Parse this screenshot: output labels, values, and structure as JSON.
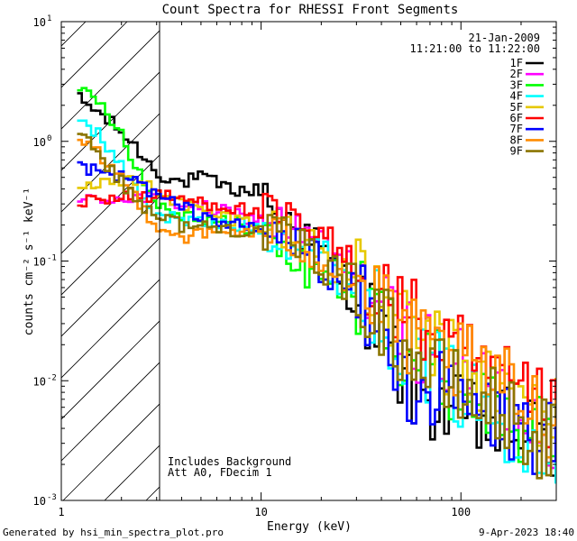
{
  "chart_data": {
    "type": "line",
    "title": "Count Spectra for RHESSI Front Segments",
    "xlabel": "Energy (keV)",
    "ylabel": "counts cm⁻² s⁻¹ keV⁻¹",
    "x_scale": "log",
    "y_scale": "log",
    "xlim": [
      1,
      300
    ],
    "ylim": [
      0.001,
      10
    ],
    "x_ticks": [
      {
        "value": 1,
        "label": "1"
      },
      {
        "value": 10,
        "label": "10"
      },
      {
        "value": 100,
        "label": "100"
      }
    ],
    "y_ticks": [
      {
        "value": 0.001,
        "base": "10",
        "exp": "-3"
      },
      {
        "value": 0.01,
        "base": "10",
        "exp": "-2"
      },
      {
        "value": 0.1,
        "base": "10",
        "exp": "-1"
      },
      {
        "value": 1,
        "base": "10",
        "exp": "0"
      },
      {
        "value": 10,
        "base": "10",
        "exp": "1"
      }
    ],
    "date": "21-Jan-2009",
    "time_range": "11:21:00 to 11:22:00",
    "hatched_region_kev": [
      1,
      3
    ],
    "annotations": [
      "Includes Background",
      "Att A0, FDecim 1"
    ],
    "footer_left": "Generated by hsi_min_spectra_plot.pro",
    "footer_right": "9-Apr-2023 18:40",
    "series": [
      {
        "name": "1F",
        "color": "#000000",
        "anchors": [
          [
            1.2,
            2.3
          ],
          [
            1.5,
            1.8
          ],
          [
            2.0,
            1.2
          ],
          [
            2.5,
            0.8
          ],
          [
            3.0,
            0.55
          ],
          [
            4.0,
            0.45
          ],
          [
            5.0,
            0.5
          ],
          [
            7.0,
            0.4
          ],
          [
            9.0,
            0.38
          ],
          [
            10.0,
            0.4
          ],
          [
            12.0,
            0.27
          ],
          [
            15.0,
            0.2
          ],
          [
            20.0,
            0.12
          ],
          [
            30.0,
            0.05
          ],
          [
            40.0,
            0.025
          ],
          [
            50.0,
            0.012
          ],
          [
            60.0,
            0.008
          ],
          [
            80.0,
            0.006
          ],
          [
            100.0,
            0.005
          ],
          [
            150.0,
            0.004
          ],
          [
            200.0,
            0.004
          ],
          [
            280.0,
            0.003
          ]
        ]
      },
      {
        "name": "2F",
        "color": "#ff00ff",
        "anchors": [
          [
            1.2,
            0.3
          ],
          [
            1.5,
            0.33
          ],
          [
            2.0,
            0.34
          ],
          [
            2.5,
            0.34
          ],
          [
            3.0,
            0.33
          ],
          [
            4.0,
            0.3
          ],
          [
            5.0,
            0.28
          ],
          [
            7.0,
            0.25
          ],
          [
            10.0,
            0.22
          ],
          [
            15.0,
            0.18
          ],
          [
            20.0,
            0.13
          ],
          [
            30.0,
            0.075
          ],
          [
            40.0,
            0.04
          ],
          [
            50.0,
            0.028
          ],
          [
            70.0,
            0.018
          ],
          [
            100.0,
            0.012
          ],
          [
            150.0,
            0.008
          ],
          [
            200.0,
            0.006
          ],
          [
            280.0,
            0.004
          ]
        ]
      },
      {
        "name": "3F",
        "color": "#00ff00",
        "anchors": [
          [
            1.2,
            2.5
          ],
          [
            1.4,
            2.4
          ],
          [
            1.6,
            2.0
          ],
          [
            2.0,
            1.2
          ],
          [
            2.3,
            0.7
          ],
          [
            2.6,
            0.45
          ],
          [
            3.0,
            0.3
          ],
          [
            4.0,
            0.25
          ],
          [
            6.0,
            0.22
          ],
          [
            8.0,
            0.2
          ],
          [
            10.0,
            0.18
          ],
          [
            13.0,
            0.12
          ],
          [
            17.0,
            0.08
          ],
          [
            20.0,
            0.09
          ],
          [
            30.0,
            0.05
          ],
          [
            40.0,
            0.035
          ],
          [
            50.0,
            0.02
          ],
          [
            70.0,
            0.013
          ],
          [
            100.0,
            0.009
          ],
          [
            150.0,
            0.006
          ],
          [
            200.0,
            0.004
          ],
          [
            280.0,
            0.003
          ]
        ]
      },
      {
        "name": "4F",
        "color": "#00ffff",
        "anchors": [
          [
            1.2,
            1.7
          ],
          [
            1.5,
            1.2
          ],
          [
            2.0,
            0.6
          ],
          [
            2.5,
            0.35
          ],
          [
            3.0,
            0.25
          ],
          [
            4.0,
            0.22
          ],
          [
            6.0,
            0.2
          ],
          [
            8.0,
            0.2
          ],
          [
            10.0,
            0.19
          ],
          [
            15.0,
            0.15
          ],
          [
            20.0,
            0.11
          ],
          [
            30.0,
            0.06
          ],
          [
            40.0,
            0.035
          ],
          [
            50.0,
            0.022
          ],
          [
            70.0,
            0.013
          ],
          [
            100.0,
            0.008
          ],
          [
            150.0,
            0.005
          ],
          [
            200.0,
            0.004
          ],
          [
            280.0,
            0.003
          ]
        ]
      },
      {
        "name": "5F",
        "color": "#e6c800",
        "anchors": [
          [
            1.2,
            0.45
          ],
          [
            1.5,
            0.45
          ],
          [
            2.0,
            0.46
          ],
          [
            2.5,
            0.45
          ],
          [
            3.0,
            0.4
          ],
          [
            4.0,
            0.3
          ],
          [
            6.0,
            0.24
          ],
          [
            8.0,
            0.22
          ],
          [
            10.0,
            0.2
          ],
          [
            15.0,
            0.17
          ],
          [
            20.0,
            0.12
          ],
          [
            30.0,
            0.07
          ],
          [
            40.0,
            0.045
          ],
          [
            50.0,
            0.03
          ],
          [
            70.0,
            0.02
          ],
          [
            100.0,
            0.013
          ],
          [
            150.0,
            0.009
          ],
          [
            200.0,
            0.007
          ],
          [
            280.0,
            0.005
          ]
        ]
      },
      {
        "name": "6F",
        "color": "#ff0000",
        "anchors": [
          [
            1.2,
            0.3
          ],
          [
            1.5,
            0.33
          ],
          [
            2.0,
            0.35
          ],
          [
            2.5,
            0.35
          ],
          [
            3.0,
            0.35
          ],
          [
            4.0,
            0.33
          ],
          [
            6.0,
            0.3
          ],
          [
            8.0,
            0.27
          ],
          [
            10.0,
            0.25
          ],
          [
            12.0,
            0.23
          ],
          [
            15.0,
            0.2
          ],
          [
            20.0,
            0.15
          ],
          [
            30.0,
            0.09
          ],
          [
            40.0,
            0.055
          ],
          [
            50.0,
            0.04
          ],
          [
            70.0,
            0.025
          ],
          [
            100.0,
            0.016
          ],
          [
            150.0,
            0.01
          ],
          [
            200.0,
            0.007
          ],
          [
            280.0,
            0.005
          ]
        ]
      },
      {
        "name": "7F",
        "color": "#0000ff",
        "anchors": [
          [
            1.2,
            0.6
          ],
          [
            1.5,
            0.55
          ],
          [
            2.0,
            0.5
          ],
          [
            2.5,
            0.45
          ],
          [
            3.0,
            0.35
          ],
          [
            4.0,
            0.28
          ],
          [
            6.0,
            0.22
          ],
          [
            8.0,
            0.19
          ],
          [
            10.0,
            0.18
          ],
          [
            15.0,
            0.14
          ],
          [
            20.0,
            0.1
          ],
          [
            30.0,
            0.05
          ],
          [
            40.0,
            0.025
          ],
          [
            50.0,
            0.012
          ],
          [
            60.0,
            0.008
          ],
          [
            80.0,
            0.008
          ],
          [
            100.0,
            0.006
          ],
          [
            150.0,
            0.005
          ],
          [
            200.0,
            0.004
          ],
          [
            280.0,
            0.003
          ]
        ]
      },
      {
        "name": "8F",
        "color": "#ff8c00",
        "anchors": [
          [
            1.2,
            1.0
          ],
          [
            1.5,
            0.8
          ],
          [
            2.0,
            0.5
          ],
          [
            2.5,
            0.3
          ],
          [
            3.0,
            0.2
          ],
          [
            4.0,
            0.16
          ],
          [
            6.0,
            0.17
          ],
          [
            8.0,
            0.18
          ],
          [
            10.0,
            0.17
          ],
          [
            15.0,
            0.15
          ],
          [
            20.0,
            0.11
          ],
          [
            30.0,
            0.06
          ],
          [
            40.0,
            0.04
          ],
          [
            50.0,
            0.025
          ],
          [
            70.0,
            0.018
          ],
          [
            100.0,
            0.014
          ],
          [
            150.0,
            0.01
          ],
          [
            200.0,
            0.007
          ],
          [
            280.0,
            0.005
          ]
        ]
      },
      {
        "name": "9F",
        "color": "#8b7500",
        "anchors": [
          [
            1.2,
            1.35
          ],
          [
            1.5,
            0.85
          ],
          [
            2.0,
            0.45
          ],
          [
            2.5,
            0.3
          ],
          [
            3.0,
            0.25
          ],
          [
            4.0,
            0.2
          ],
          [
            6.0,
            0.19
          ],
          [
            8.0,
            0.18
          ],
          [
            10.0,
            0.18
          ],
          [
            15.0,
            0.14
          ],
          [
            20.0,
            0.1
          ],
          [
            30.0,
            0.06
          ],
          [
            40.0,
            0.035
          ],
          [
            50.0,
            0.02
          ],
          [
            70.0,
            0.012
          ],
          [
            100.0,
            0.008
          ],
          [
            150.0,
            0.006
          ],
          [
            200.0,
            0.004
          ],
          [
            280.0,
            0.003
          ]
        ]
      }
    ]
  }
}
